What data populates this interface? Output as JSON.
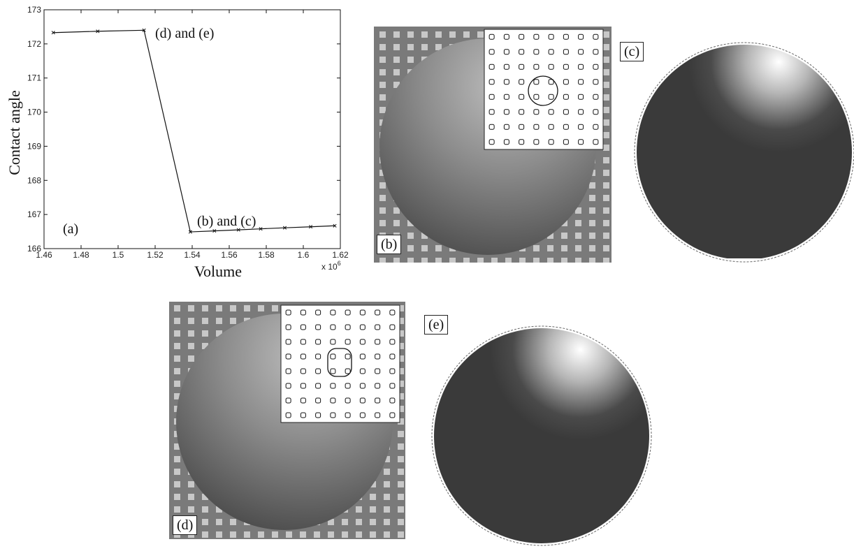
{
  "chart_data": {
    "type": "line",
    "xlabel": "Volume",
    "ylabel": "Contact angle",
    "x_multiplier_label": "x 10",
    "x_multiplier_exp": "6",
    "xlim": [
      1.46,
      1.62
    ],
    "ylim": [
      166,
      173
    ],
    "xticks": [
      "1.46",
      "1.48",
      "1.5",
      "1.52",
      "1.54",
      "1.56",
      "1.58",
      "1.6",
      "1.62"
    ],
    "yticks": [
      "166",
      "167",
      "168",
      "169",
      "170",
      "171",
      "172",
      "173"
    ],
    "x": [
      1.465,
      1.489,
      1.514,
      1.539,
      1.552,
      1.565,
      1.577,
      1.59,
      1.604,
      1.617
    ],
    "y": [
      172.33,
      172.37,
      172.4,
      166.49,
      166.52,
      166.55,
      166.58,
      166.61,
      166.64,
      166.67
    ],
    "annotations": {
      "de": "(d) and (e)",
      "bc": "(b) and (c)",
      "panel": "(a)"
    }
  },
  "panels": {
    "b": "(b)",
    "c": "(c)",
    "d": "(d)",
    "e": "(e)"
  },
  "colors": {
    "substrate": "#7a7a7a",
    "pillar": "#c8c8c8",
    "droplet_dark": "#3a3a3a",
    "line": "#111111"
  }
}
